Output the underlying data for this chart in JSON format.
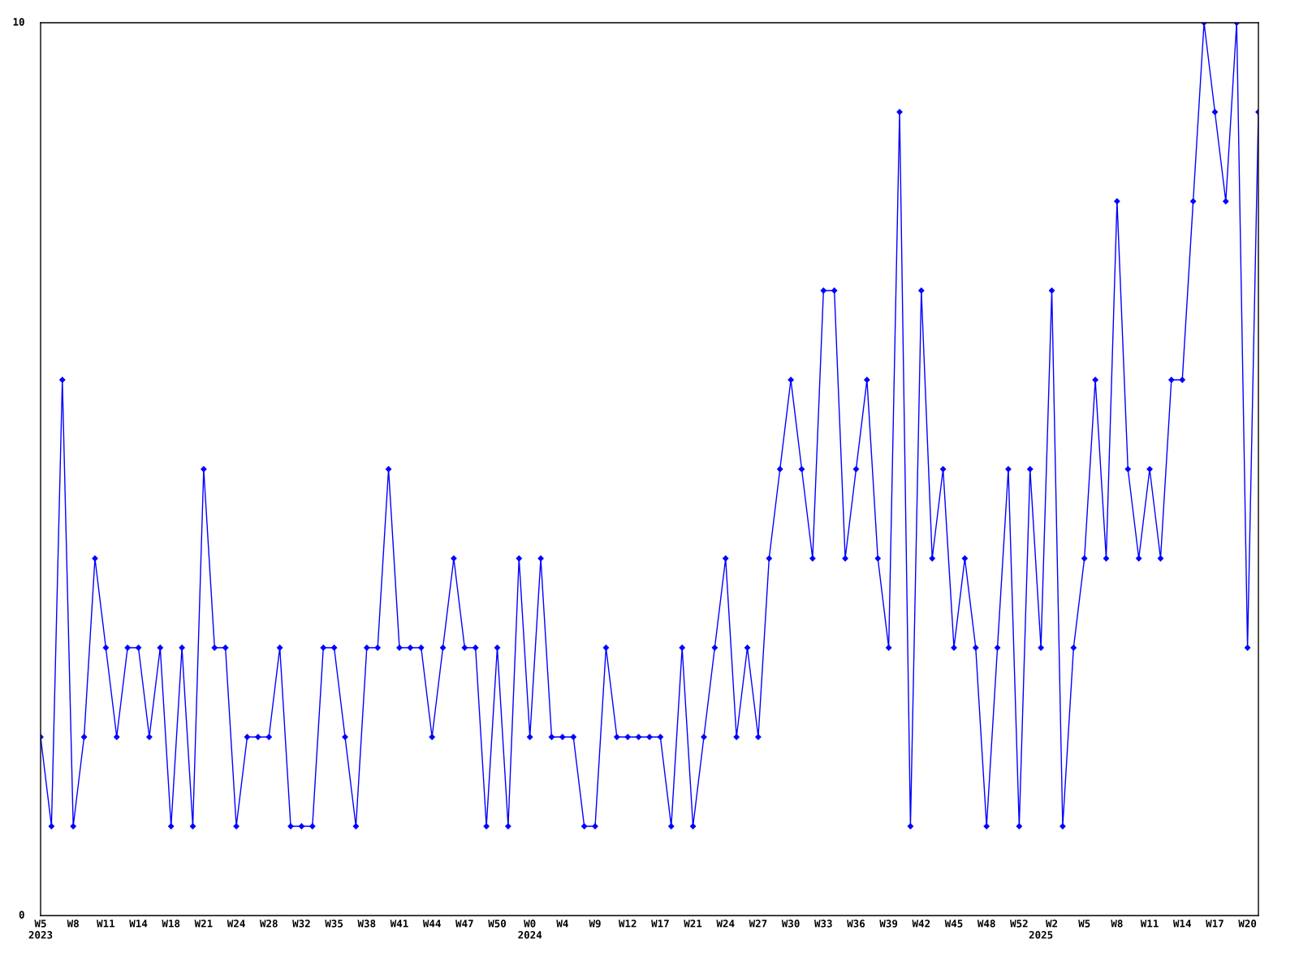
{
  "chart_data": {
    "type": "line",
    "categories": [
      "W5\n2023",
      null,
      null,
      "W8",
      null,
      null,
      "W11",
      null,
      null,
      "W14",
      null,
      null,
      "W18",
      null,
      null,
      "W21",
      null,
      null,
      "W24",
      null,
      null,
      "W28",
      null,
      null,
      "W32",
      null,
      null,
      "W35",
      null,
      null,
      "W38",
      null,
      null,
      "W41",
      null,
      null,
      "W44",
      null,
      null,
      "W47",
      null,
      null,
      "W50",
      null,
      null,
      "W0\n2024",
      null,
      null,
      "W4",
      null,
      null,
      "W9",
      null,
      null,
      "W12",
      null,
      null,
      "W17",
      null,
      null,
      "W21",
      null,
      null,
      "W24",
      null,
      null,
      "W27",
      null,
      null,
      "W30",
      null,
      null,
      "W33",
      null,
      null,
      "W36",
      null,
      null,
      "W39",
      null,
      null,
      "W42",
      null,
      null,
      "W45",
      null,
      null,
      "W48",
      null,
      null,
      "W52",
      null,
      "\n2025",
      "W2",
      null,
      null,
      "W5",
      null,
      null,
      "W8",
      null,
      null,
      "W11",
      null,
      null,
      "W14",
      null,
      null,
      "W17",
      null,
      null,
      "W20",
      null
    ],
    "series": [
      {
        "color": "#0000ff",
        "values": [
          2,
          1,
          6,
          1,
          2,
          4,
          3,
          2,
          3,
          3,
          2,
          3,
          1,
          3,
          1,
          5,
          3,
          3,
          1,
          2,
          2,
          2,
          3,
          1,
          1,
          1,
          3,
          3,
          2,
          1,
          3,
          3,
          5,
          3,
          3,
          3,
          2,
          3,
          4,
          3,
          3,
          1,
          3,
          1,
          4,
          2,
          4,
          2,
          2,
          2,
          1,
          1,
          3,
          2,
          2,
          2,
          2,
          2,
          1,
          3,
          1,
          2,
          3,
          4,
          2,
          3,
          2,
          4,
          5,
          6,
          5,
          4,
          7,
          7,
          4,
          5,
          6,
          4,
          3,
          9,
          1,
          7,
          4,
          5,
          3,
          4,
          3,
          1,
          3,
          5,
          1,
          5,
          3,
          7,
          1,
          3,
          4,
          6,
          4,
          8,
          5,
          4,
          5,
          4,
          6,
          6,
          8,
          10,
          9,
          8,
          10,
          3,
          9
        ]
      }
    ],
    "ylim": [
      0,
      10
    ],
    "yticks": [
      0,
      10
    ],
    "grid": false,
    "legend": false,
    "marker": "diamond",
    "line_style": "solid"
  }
}
